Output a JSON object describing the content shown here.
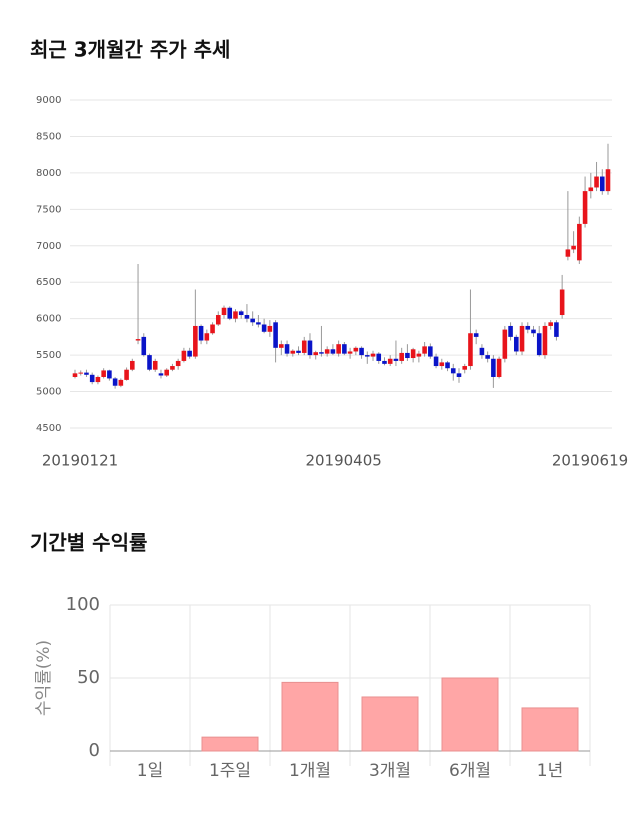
{
  "chart_data": [
    {
      "type": "candlestick",
      "title": "최근 3개월간 주가 추세",
      "categories": [
        "20190121",
        null,
        null,
        null,
        null,
        null,
        null,
        null,
        null,
        null,
        null,
        null,
        null,
        null,
        null,
        null,
        null,
        null,
        null,
        null,
        null,
        null,
        null,
        null,
        null,
        null,
        null,
        null,
        null,
        null,
        null,
        null,
        null,
        null,
        null,
        null,
        null,
        null,
        null,
        null,
        null,
        null,
        null,
        null,
        null,
        null,
        "20190405",
        null,
        null,
        null,
        null,
        null,
        null,
        null,
        null,
        null,
        null,
        null,
        null,
        null,
        null,
        null,
        null,
        null,
        null,
        null,
        null,
        null,
        null,
        null,
        null,
        null,
        null,
        null,
        null,
        null,
        null,
        null,
        null,
        null,
        null,
        null,
        null,
        null,
        null,
        null,
        null,
        null,
        null,
        null,
        null,
        null,
        null,
        "20190619"
      ],
      "open": [
        5200,
        5250,
        5260,
        5230,
        5130,
        5200,
        5290,
        5180,
        5080,
        5160,
        5300,
        5700,
        5750,
        5500,
        5300,
        5250,
        5220,
        5300,
        5350,
        5420,
        5560,
        5480,
        5900,
        5700,
        5800,
        5920,
        6050,
        6150,
        6000,
        6100,
        6050,
        6000,
        5950,
        5920,
        5820,
        5950,
        5600,
        5650,
        5520,
        5560,
        5530,
        5700,
        5500,
        5540,
        5520,
        5580,
        5520,
        5650,
        5520,
        5550,
        5600,
        5500,
        5480,
        5520,
        5420,
        5380,
        5450,
        5420,
        5530,
        5460,
        5480,
        5520,
        5620,
        5480,
        5350,
        5400,
        5320,
        5250,
        5300,
        5350,
        5800,
        5600,
        5500,
        5450,
        5200,
        5450,
        5900,
        5750,
        5550,
        5900,
        5850,
        5800,
        5500,
        5900,
        5950,
        6050,
        6850,
        6950,
        6800,
        7300,
        7750,
        7800,
        7950,
        7750
      ],
      "high": [
        5300,
        5290,
        5300,
        5260,
        5220,
        5320,
        5300,
        5200,
        5180,
        5330,
        5450,
        6750,
        5800,
        5520,
        5450,
        5300,
        5320,
        5380,
        5450,
        5600,
        5600,
        6400,
        5920,
        5850,
        5950,
        6100,
        6180,
        6170,
        6130,
        6120,
        6200,
        6100,
        6050,
        6000,
        5980,
        5980,
        5700,
        5700,
        5580,
        5620,
        5750,
        5800,
        5560,
        5900,
        5620,
        5650,
        5700,
        5680,
        5600,
        5620,
        5620,
        5550,
        5560,
        5540,
        5470,
        5500,
        5700,
        5600,
        5650,
        5600,
        5560,
        5680,
        5660,
        5520,
        5450,
        5420,
        5380,
        5320,
        5380,
        6400,
        5850,
        5650,
        5550,
        5500,
        5480,
        5900,
        5950,
        5780,
        5950,
        5950,
        5900,
        5900,
        5950,
        5980,
        5980,
        6600,
        7750,
        7200,
        7400,
        7950,
        8000,
        8150,
        8050,
        8400
      ],
      "low": [
        5180,
        5220,
        5200,
        5100,
        5100,
        5180,
        5150,
        5040,
        5060,
        5150,
        5280,
        5650,
        5480,
        5280,
        5270,
        5180,
        5200,
        5280,
        5300,
        5400,
        5450,
        5450,
        5650,
        5650,
        5780,
        5900,
        6000,
        5980,
        5950,
        6000,
        5950,
        5900,
        5880,
        5800,
        5750,
        5400,
        5500,
        5480,
        5480,
        5500,
        5500,
        5450,
        5440,
        5480,
        5480,
        5500,
        5480,
        5500,
        5450,
        5500,
        5450,
        5380,
        5420,
        5380,
        5360,
        5350,
        5350,
        5380,
        5420,
        5400,
        5400,
        5480,
        5450,
        5320,
        5300,
        5280,
        5150,
        5120,
        5250,
        5300,
        5650,
        5450,
        5400,
        5050,
        5180,
        5400,
        5700,
        5500,
        5500,
        5800,
        5750,
        5480,
        5450,
        5850,
        5700,
        6000,
        6800,
        6900,
        6750,
        7250,
        7650,
        7750,
        7700,
        7700
      ],
      "close": [
        5250,
        5260,
        5230,
        5130,
        5200,
        5290,
        5180,
        5080,
        5160,
        5300,
        5420,
        5720,
        5500,
        5300,
        5420,
        5220,
        5300,
        5350,
        5420,
        5560,
        5480,
        5900,
        5700,
        5800,
        5920,
        6050,
        6150,
        6000,
        6100,
        6050,
        6000,
        5950,
        5920,
        5820,
        5900,
        5600,
        5650,
        5520,
        5560,
        5530,
        5700,
        5500,
        5540,
        5520,
        5580,
        5520,
        5650,
        5520,
        5550,
        5600,
        5500,
        5480,
        5520,
        5420,
        5380,
        5450,
        5420,
        5530,
        5460,
        5580,
        5520,
        5620,
        5480,
        5350,
        5400,
        5320,
        5250,
        5200,
        5350,
        5800,
        5750,
        5500,
        5450,
        5200,
        5450,
        5850,
        5750,
        5550,
        5900,
        5850,
        5800,
        5500,
        5900,
        5950,
        5750,
        6400,
        6950,
        7000,
        7300,
        7750,
        7800,
        7950,
        7750,
        8050
      ],
      "up_color": "#e8141b",
      "down_color": "#0a14c8",
      "wick_color": "#999999",
      "ylim": [
        4500,
        9000
      ],
      "yticks": [
        4500,
        5000,
        5500,
        6000,
        6500,
        7000,
        7500,
        8000,
        8500,
        9000
      ],
      "grid": true
    },
    {
      "type": "bar",
      "title": "기간별 수익률",
      "ylabel": "수익률(%)",
      "categories": [
        "1일",
        "1주일",
        "1개월",
        "3개월",
        "6개월",
        "1년"
      ],
      "values": [
        0,
        9.5,
        47,
        37,
        50,
        29.5
      ],
      "color": "#ffa6a6",
      "ylim": [
        0,
        100
      ],
      "yticks": [
        0,
        50,
        100
      ],
      "grid": true
    }
  ]
}
